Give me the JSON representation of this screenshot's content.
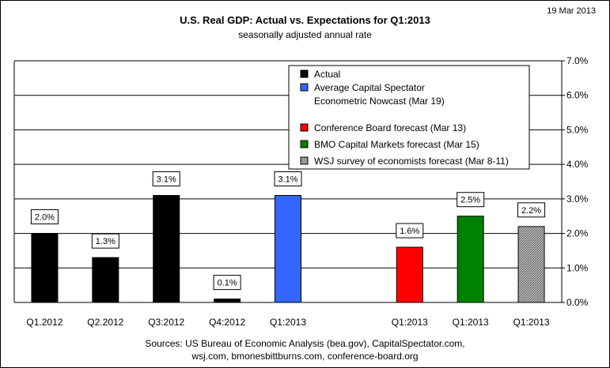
{
  "header": {
    "title": "U.S. Real GDP: Actual vs. Expectations for Q1:2013",
    "subtitle": "seasonally adjusted annual rate",
    "date": "19 Mar 2013"
  },
  "footer": {
    "sources_line1": "Sources: US Bureau of Economic Analysis (bea.gov), CapitalSpectator.com,",
    "sources_line2": "wsj.com, bmonesbittburns.com, conference-board.org"
  },
  "legend": {
    "items": [
      {
        "label": "Actual",
        "color": "#000000",
        "pattern": false
      },
      {
        "label": "Average Capital Spectator",
        "label2": "Econometric Nowcast (Mar 19)",
        "color": "#3366ff",
        "pattern": false
      },
      {
        "label": "Conference Board forecast (Mar 13)",
        "color": "#ff0000",
        "pattern": false
      },
      {
        "label": "BMO Capital Markets forecast (Mar 15)",
        "color": "#008000",
        "pattern": false
      },
      {
        "label": "WSJ survey of economists forecast (Mar 8-11)",
        "color": "#969696",
        "pattern": true
      }
    ]
  },
  "chart_data": {
    "type": "bar",
    "categories": [
      "Q1.2012",
      "Q2.2012",
      "Q3:2012",
      "Q4:2012",
      "Q1:2013",
      "",
      "Q1:2013",
      "Q1:2013",
      "Q1:2013"
    ],
    "values": [
      2.0,
      1.3,
      3.1,
      0.1,
      3.1,
      null,
      1.6,
      2.5,
      2.2
    ],
    "data_labels": [
      "2.0%",
      "1.3%",
      "3.1%",
      "0.1%",
      "3.1%",
      "",
      "1.6%",
      "2.5%",
      "2.2%"
    ],
    "colors": [
      "#000000",
      "#000000",
      "#000000",
      "#000000",
      "#3366ff",
      "",
      "#ff0000",
      "#008000",
      "#969696"
    ],
    "ylim": [
      0,
      7
    ],
    "yticks": [
      0,
      1,
      2,
      3,
      4,
      5,
      6,
      7
    ],
    "ytick_labels": [
      "0.0%",
      "1.0%",
      "2.0%",
      "3.0%",
      "4.0%",
      "5.0%",
      "6.0%",
      "7.0%"
    ],
    "y_axis_position": "right",
    "grid": true,
    "legend_position": "top-right"
  }
}
